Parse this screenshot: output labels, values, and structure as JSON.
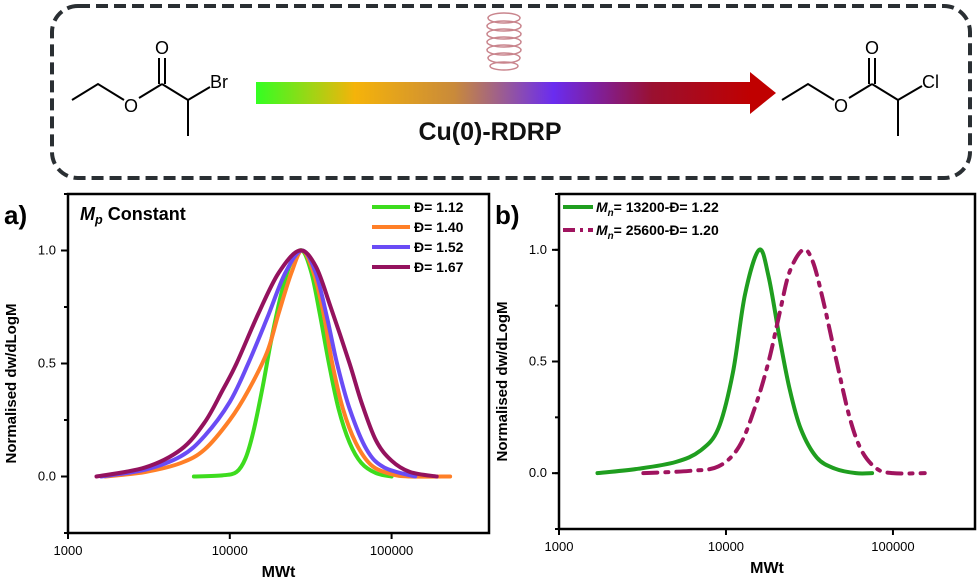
{
  "scheme": {
    "reactant_labels": {
      "carbonyl_o": "O",
      "ester_o": "O",
      "halogen": "Br"
    },
    "product_labels": {
      "carbonyl_o": "O",
      "ester_o": "O",
      "halogen": "Cl"
    },
    "arrow_label": "Cu(0)-RDRP",
    "arrow_gradient": [
      "#33ff22",
      "#f5b30a",
      "#c98a3a",
      "#6a2cf0",
      "#9a1030",
      "#c00000"
    ],
    "catalyst_icon": "copper-wire-coil-icon"
  },
  "chart_data": [
    {
      "type": "line",
      "panel_label": "a)",
      "annotation": {
        "symbol": "M",
        "subscript": "p",
        "text": " Constant"
      },
      "xlabel": "MWt",
      "ylabel": "Normalised dw/dLogM",
      "xscale": "log",
      "xlim": [
        1000,
        400000
      ],
      "ylim": [
        -0.25,
        1.25
      ],
      "xticks": [
        "1000",
        "10000",
        "100000"
      ],
      "yticks": [
        "0.0",
        "0.5",
        "1.0"
      ],
      "grid": false,
      "legend_position": "top-right",
      "series": [
        {
          "name": "Đ= 1.12",
          "color": "#3ddc1e",
          "dash": "solid",
          "points": [
            [
              6000,
              0
            ],
            [
              9000,
              0.005
            ],
            [
              11000,
              0.02
            ],
            [
              12500,
              0.08
            ],
            [
              14000,
              0.2
            ],
            [
              16000,
              0.4
            ],
            [
              18000,
              0.6
            ],
            [
              21000,
              0.82
            ],
            [
              24000,
              0.95
            ],
            [
              28000,
              1.0
            ],
            [
              32000,
              0.9
            ],
            [
              36000,
              0.72
            ],
            [
              41000,
              0.5
            ],
            [
              47000,
              0.3
            ],
            [
              55000,
              0.15
            ],
            [
              65000,
              0.06
            ],
            [
              80000,
              0.015
            ],
            [
              100000,
              0
            ]
          ]
        },
        {
          "name": "Đ= 1.40",
          "color": "#ff7f27",
          "dash": "solid",
          "points": [
            [
              1700,
              0
            ],
            [
              3000,
              0.02
            ],
            [
              5000,
              0.06
            ],
            [
              7000,
              0.12
            ],
            [
              10000,
              0.25
            ],
            [
              13000,
              0.38
            ],
            [
              17000,
              0.55
            ],
            [
              20000,
              0.72
            ],
            [
              24000,
              0.9
            ],
            [
              28000,
              1.0
            ],
            [
              33000,
              0.9
            ],
            [
              38000,
              0.72
            ],
            [
              43000,
              0.5
            ],
            [
              50000,
              0.3
            ],
            [
              60000,
              0.15
            ],
            [
              75000,
              0.05
            ],
            [
              100000,
              0.01
            ],
            [
              130000,
              0
            ],
            [
              230000,
              0
            ]
          ]
        },
        {
          "name": "Đ= 1.52",
          "color": "#6a4cf5",
          "dash": "solid",
          "points": [
            [
              1600,
              0
            ],
            [
              3000,
              0.03
            ],
            [
              5000,
              0.09
            ],
            [
              7000,
              0.18
            ],
            [
              10000,
              0.33
            ],
            [
              13000,
              0.5
            ],
            [
              17000,
              0.7
            ],
            [
              22000,
              0.9
            ],
            [
              28000,
              1.0
            ],
            [
              34000,
              0.9
            ],
            [
              40000,
              0.7
            ],
            [
              46000,
              0.5
            ],
            [
              55000,
              0.3
            ],
            [
              70000,
              0.12
            ],
            [
              90000,
              0.04
            ],
            [
              140000,
              0
            ]
          ]
        },
        {
          "name": "Đ= 1.67",
          "color": "#94125e",
          "dash": "solid",
          "points": [
            [
              1500,
              0
            ],
            [
              3000,
              0.04
            ],
            [
              5000,
              0.12
            ],
            [
              7000,
              0.24
            ],
            [
              9000,
              0.38
            ],
            [
              11000,
              0.5
            ],
            [
              15000,
              0.72
            ],
            [
              20000,
              0.9
            ],
            [
              27000,
              1.0
            ],
            [
              34000,
              0.93
            ],
            [
              42000,
              0.75
            ],
            [
              55000,
              0.5
            ],
            [
              65000,
              0.33
            ],
            [
              80000,
              0.16
            ],
            [
              100000,
              0.07
            ],
            [
              130000,
              0.02
            ],
            [
              190000,
              0
            ]
          ]
        }
      ]
    },
    {
      "type": "line",
      "panel_label": "b)",
      "xlabel": "MWt",
      "ylabel": "Normalised dw/dLogM",
      "xscale": "log",
      "xlim": [
        1000,
        310000
      ],
      "ylim": [
        -0.25,
        1.25
      ],
      "xticks": [
        "1000",
        "10000",
        "100000"
      ],
      "yticks": [
        "0.0",
        "0.5",
        "1.0"
      ],
      "grid": false,
      "legend_position": "top-left",
      "series": [
        {
          "name": {
            "symbol": "M",
            "subscript": "n",
            "text": "= 13200-Đ= 1.22"
          },
          "color": "#1f9e1f",
          "dash": "solid",
          "points": [
            [
              1700,
              0
            ],
            [
              3000,
              0.02
            ],
            [
              5000,
              0.05
            ],
            [
              7000,
              0.1
            ],
            [
              9000,
              0.2
            ],
            [
              11000,
              0.45
            ],
            [
              13000,
              0.8
            ],
            [
              15800,
              1.0
            ],
            [
              18000,
              0.88
            ],
            [
              21000,
              0.6
            ],
            [
              24000,
              0.38
            ],
            [
              28000,
              0.2
            ],
            [
              35000,
              0.07
            ],
            [
              45000,
              0.02
            ],
            [
              60000,
              0
            ],
            [
              75000,
              0
            ]
          ]
        },
        {
          "name": {
            "symbol": "M",
            "subscript": "n",
            "text": "= 25600-Đ= 1.20"
          },
          "color": "#a0145f",
          "dash": "dash-dot",
          "points": [
            [
              3200,
              0
            ],
            [
              6000,
              0.01
            ],
            [
              9000,
              0.03
            ],
            [
              12000,
              0.12
            ],
            [
              15000,
              0.3
            ],
            [
              18000,
              0.5
            ],
            [
              21000,
              0.72
            ],
            [
              24000,
              0.9
            ],
            [
              28900,
              1.0
            ],
            [
              33000,
              0.95
            ],
            [
              38000,
              0.78
            ],
            [
              46000,
              0.5
            ],
            [
              55000,
              0.25
            ],
            [
              65000,
              0.1
            ],
            [
              80000,
              0.02
            ],
            [
              100000,
              0
            ],
            [
              155000,
              0
            ]
          ]
        }
      ]
    }
  ]
}
